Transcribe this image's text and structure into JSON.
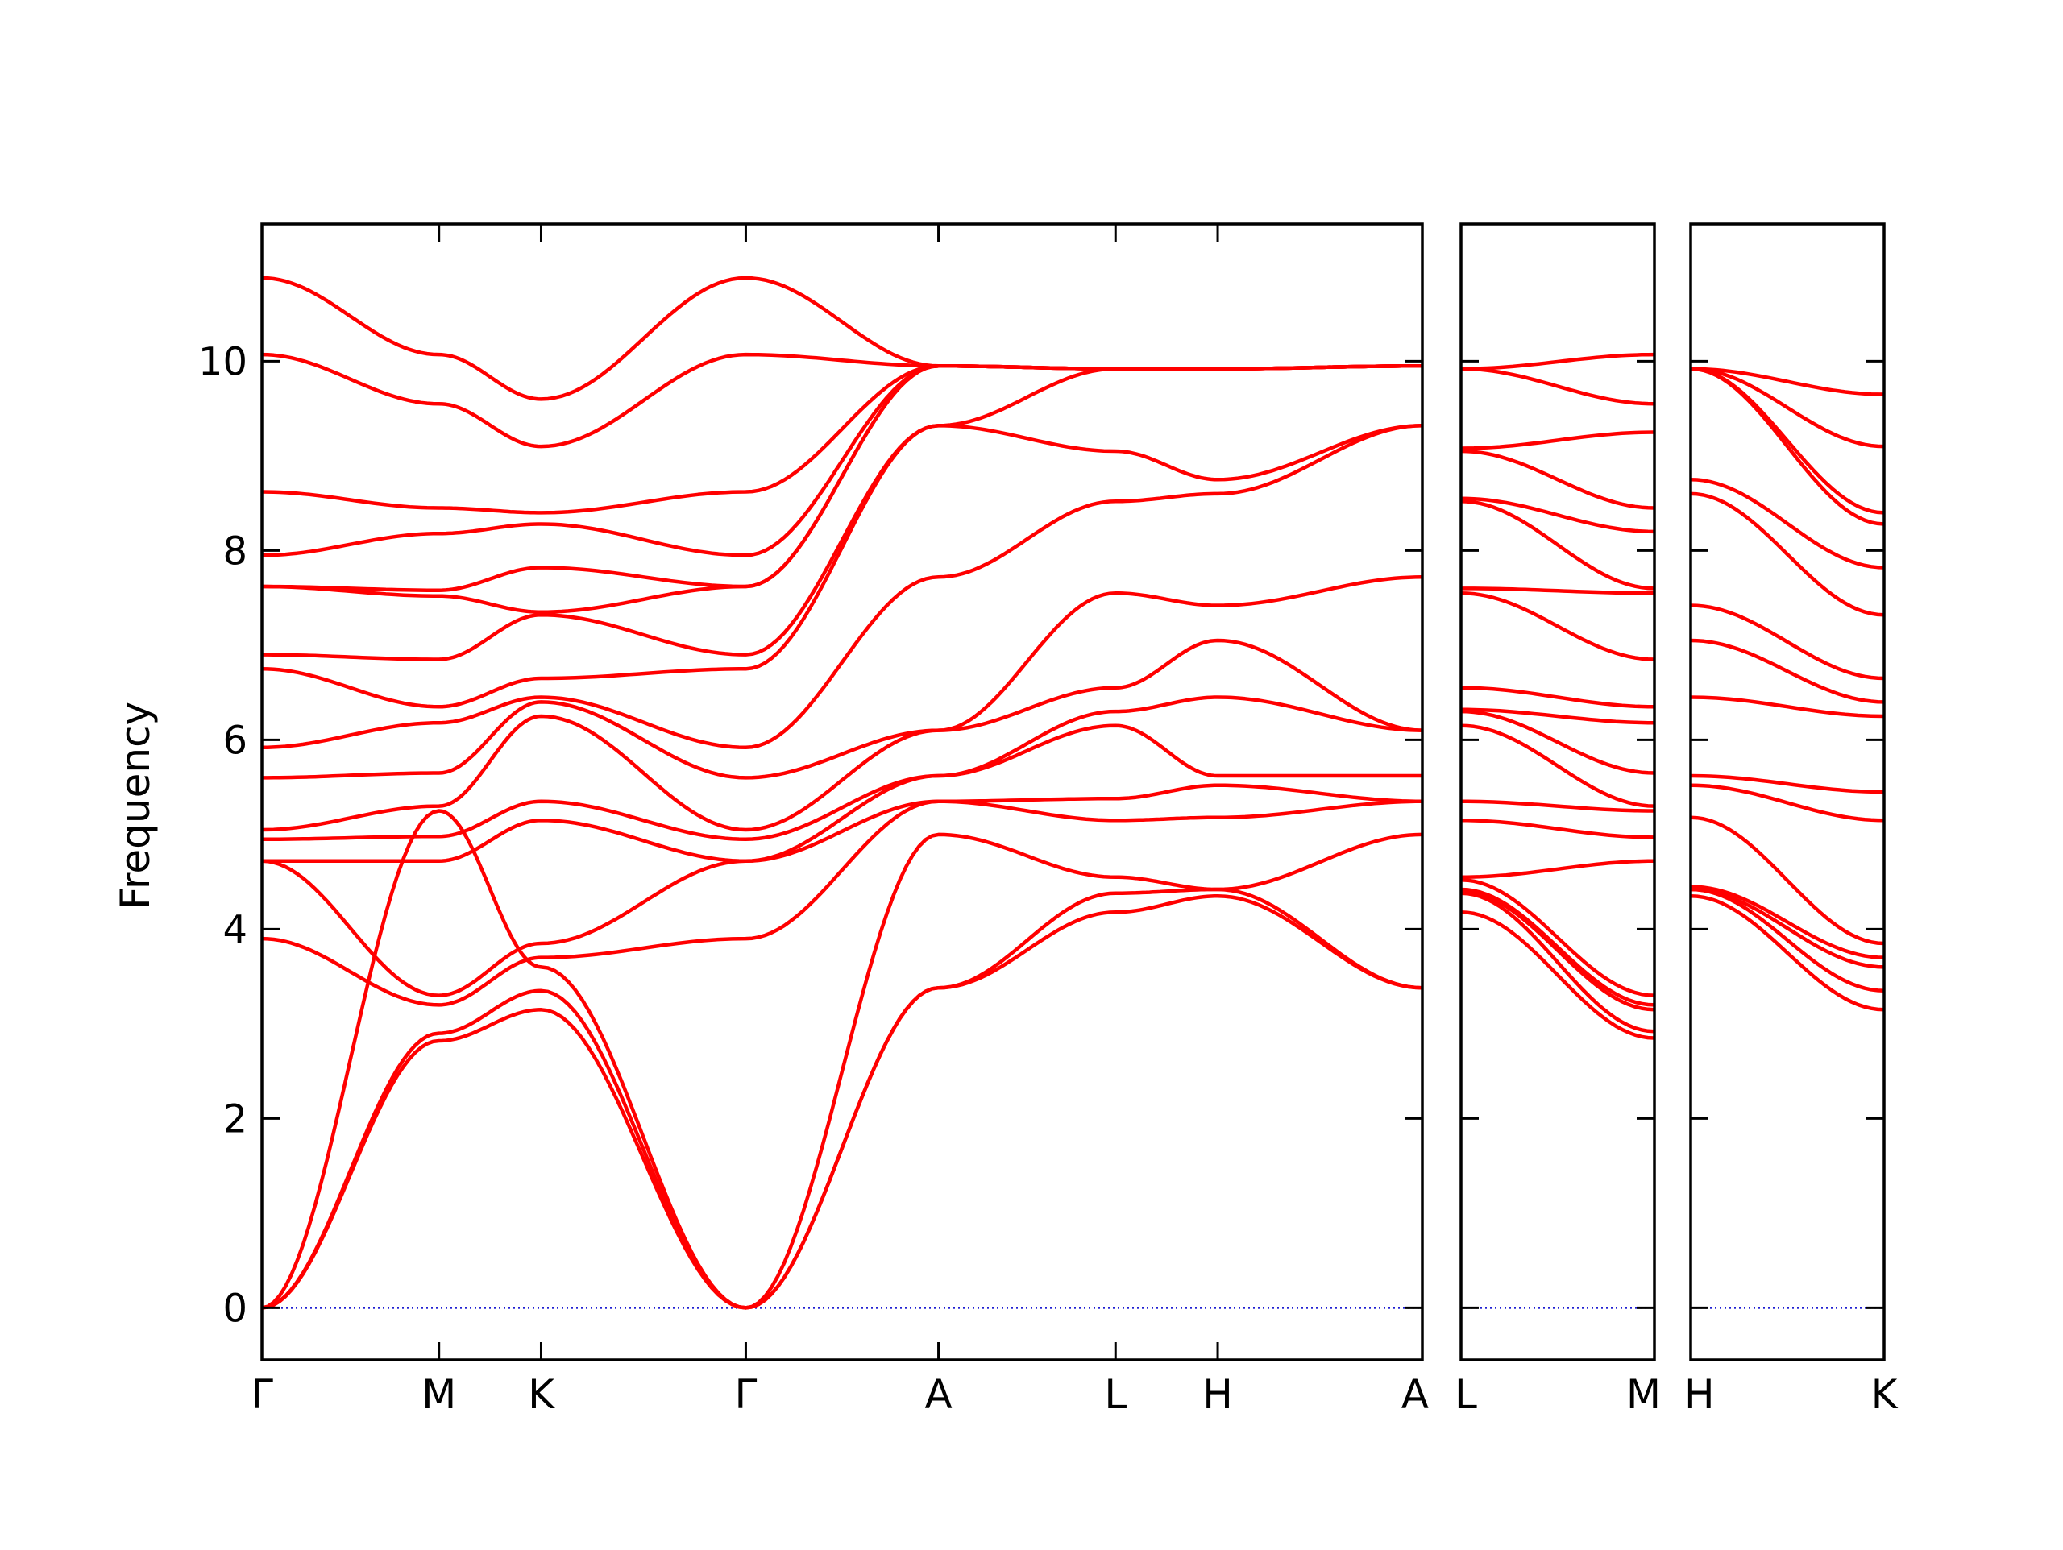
{
  "chart_data": {
    "type": "line",
    "title": "",
    "ylabel": "Frequency",
    "ylim": [
      -0.55,
      11.45
    ],
    "yticks": [
      0,
      2,
      4,
      6,
      8,
      10
    ],
    "ytick_labels": [
      "0",
      "2",
      "4",
      "6",
      "8",
      "10"
    ],
    "grid": false,
    "legend": "none",
    "colors": {
      "bands": "#ff0000",
      "zero_line": "#0000cc",
      "frame": "#000000"
    },
    "zero_line_value": 0,
    "panels": [
      {
        "path": [
          "Γ",
          "M",
          "K",
          "Γ",
          "A",
          "L",
          "H",
          "A"
        ],
        "x_labels": [
          "Γ",
          "M",
          "K",
          "Γ",
          "A",
          "L",
          "H",
          "A"
        ],
        "x_positions": [
          0,
          0.577,
          0.91,
          1.577,
          2.205,
          2.782,
          3.115,
          3.782
        ],
        "nodes": [
          [
            0.0,
            2.82,
            3.15,
            0.0,
            3.38,
            4.18,
            4.35,
            3.38
          ],
          [
            0.0,
            2.9,
            3.35,
            0.0,
            3.38,
            4.38,
            4.42,
            3.38
          ],
          [
            0.0,
            5.25,
            3.6,
            0.0,
            5.0,
            4.55,
            4.42,
            5.0
          ],
          [
            3.9,
            3.2,
            3.7,
            3.9,
            5.35,
            5.15,
            5.18,
            5.35
          ],
          [
            4.72,
            3.3,
            3.85,
            4.72,
            5.35,
            5.38,
            5.52,
            5.35
          ],
          [
            4.72,
            4.72,
            5.15,
            4.72,
            5.62,
            6.15,
            5.62,
            5.62
          ],
          [
            4.95,
            4.98,
            5.35,
            4.95,
            5.62,
            6.3,
            6.45,
            6.1
          ],
          [
            5.05,
            5.3,
            6.25,
            5.05,
            6.1,
            6.55,
            7.05,
            6.1
          ],
          [
            5.6,
            5.65,
            6.4,
            5.6,
            6.1,
            7.55,
            7.42,
            7.72
          ],
          [
            5.92,
            6.18,
            6.45,
            5.92,
            7.72,
            8.52,
            8.6,
            9.32
          ],
          [
            6.75,
            6.35,
            6.65,
            6.75,
            9.32,
            9.05,
            8.75,
            9.32
          ],
          [
            6.9,
            6.85,
            7.32,
            6.9,
            9.32,
            9.92,
            9.92,
            9.95
          ],
          [
            7.62,
            7.52,
            7.35,
            7.62,
            9.95,
            9.92,
            9.92,
            9.95
          ],
          [
            7.62,
            7.58,
            7.82,
            7.62,
            9.95,
            9.92,
            9.92,
            9.95
          ],
          [
            7.95,
            8.18,
            8.28,
            7.95,
            9.95,
            9.92,
            9.92,
            9.95
          ],
          [
            8.62,
            8.45,
            8.4,
            8.62,
            9.95,
            9.92,
            9.92,
            9.95
          ],
          [
            10.07,
            9.55,
            9.1,
            10.07,
            9.95,
            9.92,
            9.92,
            9.95
          ],
          [
            10.88,
            10.07,
            9.6,
            10.88,
            9.95,
            9.92,
            9.92,
            9.95
          ]
        ]
      },
      {
        "path": [
          "L",
          "M"
        ],
        "x_labels": [
          "L",
          "M"
        ],
        "x_positions": [
          0,
          1
        ],
        "nodes": [
          [
            4.18,
            2.85
          ],
          [
            4.38,
            2.92
          ],
          [
            4.4,
            3.15
          ],
          [
            4.42,
            3.2
          ],
          [
            4.52,
            3.3
          ],
          [
            4.55,
            4.72
          ],
          [
            5.15,
            4.97
          ],
          [
            5.35,
            5.25
          ],
          [
            6.15,
            5.3
          ],
          [
            6.3,
            5.65
          ],
          [
            6.32,
            6.18
          ],
          [
            6.55,
            6.35
          ],
          [
            7.55,
            6.85
          ],
          [
            7.6,
            7.55
          ],
          [
            8.52,
            7.6
          ],
          [
            8.55,
            8.2
          ],
          [
            9.05,
            8.45
          ],
          [
            9.08,
            9.25
          ],
          [
            9.92,
            9.55
          ],
          [
            9.92,
            10.07
          ]
        ]
      },
      {
        "path": [
          "H",
          "K"
        ],
        "x_labels": [
          "H",
          "K"
        ],
        "x_positions": [
          0,
          1
        ],
        "nodes": [
          [
            4.35,
            3.15
          ],
          [
            4.42,
            3.35
          ],
          [
            4.42,
            3.6
          ],
          [
            4.45,
            3.7
          ],
          [
            5.18,
            3.85
          ],
          [
            5.52,
            5.15
          ],
          [
            5.62,
            5.45
          ],
          [
            6.45,
            6.25
          ],
          [
            7.05,
            6.4
          ],
          [
            7.42,
            6.65
          ],
          [
            8.6,
            7.32
          ],
          [
            8.75,
            7.82
          ],
          [
            9.92,
            8.28
          ],
          [
            9.92,
            8.4
          ],
          [
            9.92,
            9.1
          ],
          [
            9.92,
            9.65
          ]
        ]
      }
    ]
  }
}
